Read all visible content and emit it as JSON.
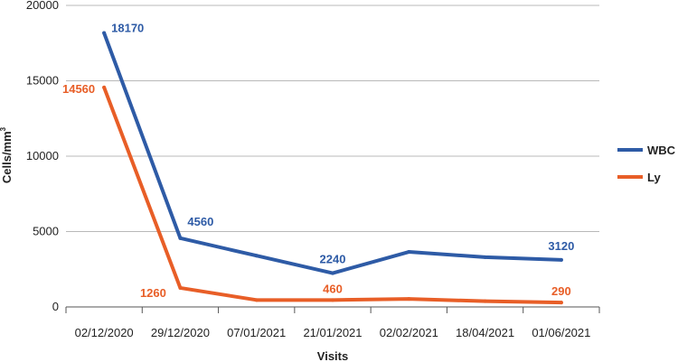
{
  "chart_data": {
    "type": "line",
    "title": "",
    "xlabel": "Visits",
    "ylabel": "Cells/mm",
    "ylabel_sup": "3",
    "categories": [
      "02/12/2020",
      "29/12/2020",
      "07/01/2021",
      "21/01/2021",
      "02/02/2021",
      "18/04/2021",
      "01/06/2021"
    ],
    "ylim": [
      0,
      20000
    ],
    "yticks": [
      "0",
      "5000",
      "10000",
      "15000",
      "20000"
    ],
    "grid": true,
    "legend_position": "right",
    "series": [
      {
        "name": "WBC",
        "color": "#2e5ba6",
        "values": [
          18170,
          4560,
          3400,
          2240,
          3650,
          3300,
          3120
        ],
        "data_labels": [
          "18170",
          "4560",
          "",
          "2240",
          "",
          "",
          "3120"
        ]
      },
      {
        "name": "Ly",
        "color": "#e85e27",
        "values": [
          14560,
          1260,
          460,
          460,
          530,
          380,
          290
        ],
        "data_labels": [
          "14560",
          "1260",
          "",
          "460",
          "",
          "",
          "290"
        ]
      }
    ]
  }
}
